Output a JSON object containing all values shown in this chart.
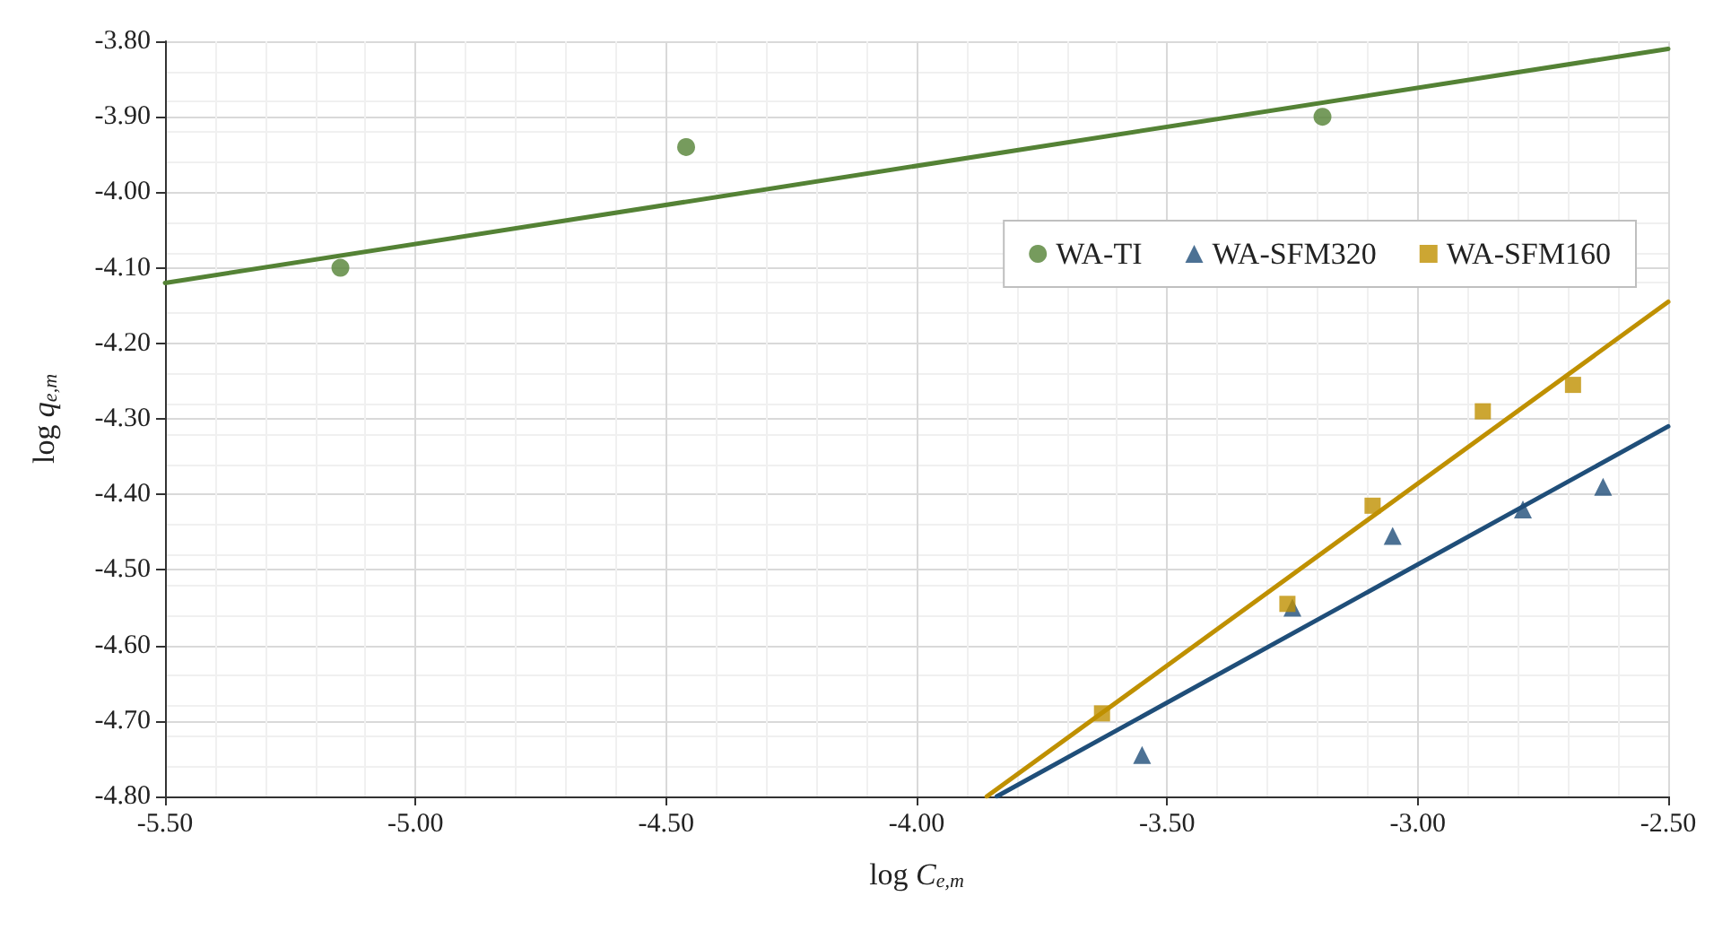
{
  "chart_data": {
    "type": "scatter",
    "xlabel": "log C$_{e,m}$",
    "ylabel": "log q$_{e,m}$",
    "xlim": [
      -5.5,
      -2.5
    ],
    "ylim": [
      -4.8,
      -3.8
    ],
    "xticks": [
      {
        "value": -5.5,
        "label": "-5.50"
      },
      {
        "value": -5,
        "label": "-5.00"
      },
      {
        "value": -4.5,
        "label": "-4.50"
      },
      {
        "value": -4,
        "label": "-4.00"
      },
      {
        "value": -3.5,
        "label": "-3.50"
      },
      {
        "value": -3,
        "label": "-3.00"
      },
      {
        "value": -2.5,
        "label": "-2.50"
      }
    ],
    "yticks": [
      {
        "value": -4.8,
        "label": "-4.80"
      },
      {
        "value": -4.7,
        "label": "-4.70"
      },
      {
        "value": -4.6,
        "label": "-4.60"
      },
      {
        "value": -4.5,
        "label": "-4.50"
      },
      {
        "value": -4.4,
        "label": "-4.40"
      },
      {
        "value": -4.3,
        "label": "-4.30"
      },
      {
        "value": -4.2,
        "label": "-4.20"
      },
      {
        "value": -4.1,
        "label": "-4.10"
      },
      {
        "value": -4,
        "label": "-4.00"
      },
      {
        "value": -3.9,
        "label": "-3.90"
      },
      {
        "value": -3.8,
        "label": "-3.80"
      }
    ],
    "grid": true,
    "legend": "top right",
    "series": [
      {
        "name": "WA-TI",
        "color": "#548235",
        "marker": "circle",
        "x": [
          -5.15,
          -4.46,
          -3.19
        ],
        "values": [
          -4.1,
          -3.94,
          -3.9
        ]
      },
      {
        "name": "WA-SFM320",
        "color": "#1f4e79",
        "marker": "triangle",
        "x": [
          -3.55,
          -3.25,
          -3.05,
          -2.79,
          -2.63
        ],
        "values": [
          -4.745,
          -4.55,
          -4.455,
          -4.42,
          -4.39
        ]
      },
      {
        "name": "WA-SFM160",
        "color": "#bf9000",
        "marker": "square",
        "x": [
          -3.63,
          -3.26,
          -3.09,
          -2.87,
          -2.69
        ],
        "values": [
          -4.69,
          -4.545,
          -4.415,
          -4.29,
          -4.255
        ]
      },
      {
        "type": "line",
        "color": "#548235",
        "marker": "none",
        "x": [
          -5.5,
          -2.5
        ],
        "values": [
          -4.12,
          -3.81
        ]
      },
      {
        "type": "line",
        "color": "#1f4e79",
        "marker": "none",
        "x": [
          -3.84,
          -2.5
        ],
        "values": [
          -4.8,
          -4.31
        ]
      },
      {
        "type": "line",
        "color": "#bf9000",
        "marker": "none",
        "x": [
          -3.86,
          -2.5
        ],
        "values": [
          -4.8,
          -4.145
        ]
      }
    ]
  }
}
